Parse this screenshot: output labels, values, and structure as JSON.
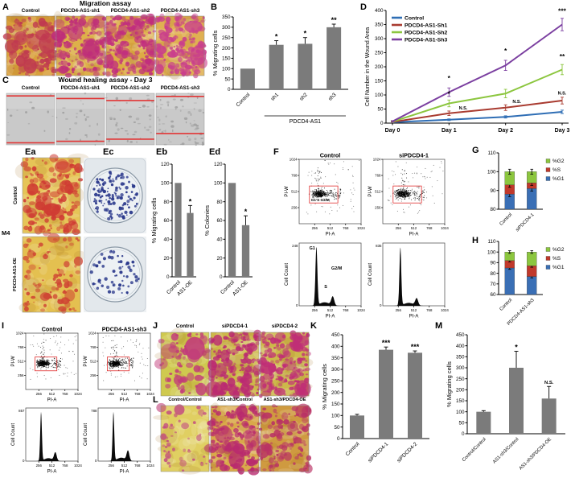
{
  "colors": {
    "bar_gray": "#7b7b7b",
    "wound_line": "#e23535",
    "gate_red": "#e03030",
    "colony_dot": "#2c3a8c",
    "series_blue": "#2f6eb5",
    "series_red": "#a93b30",
    "series_green": "#8cc63f",
    "series_purple": "#7b3fa0",
    "stack_g2_green": "#8cc63f",
    "stack_s_red": "#c0392b",
    "stack_g1_blue": "#3a6fb5"
  },
  "panels": {
    "A": {
      "id": "A",
      "title": "Migration assay",
      "labels": [
        "Control",
        "PDCD4-AS1-sh1",
        "PDCD4-AS1-sh2",
        "PDCD4-AS1-sh3"
      ]
    },
    "B": {
      "id": "B"
    },
    "C": {
      "id": "C",
      "title": "Wound healing assay - Day 3",
      "labels": [
        "Control",
        "PDCD4-AS1-sh1",
        "PDCD4-AS1-sh2",
        "PDCD4-AS1-sh3"
      ]
    },
    "D": {
      "id": "D"
    },
    "E": {
      "ea": "Ea",
      "eb": "Eb",
      "ec": "Ec",
      "ed": "Ed",
      "cell_line": "M4",
      "row_labels": [
        "Control",
        "PDCD4-AS1-OE"
      ]
    },
    "F": {
      "id": "F"
    },
    "G": {
      "id": "G"
    },
    "H": {
      "id": "H"
    },
    "I": {
      "id": "I"
    },
    "J": {
      "id": "J",
      "labels": [
        "Control",
        "siPDCD4-1",
        "siPDCD4-2"
      ]
    },
    "K": {
      "id": "K"
    },
    "L": {
      "id": "L",
      "labels": [
        "Control/Control",
        "AS1-sh3/Control",
        "AS1-sh3/PDCD4-OE"
      ]
    },
    "M": {
      "id": "M"
    }
  },
  "chart_data": [
    {
      "id": "B",
      "type": "bar",
      "ylabel": "% Migrating cells",
      "ylim": [
        0,
        350
      ],
      "ytick_step": 50,
      "categories": [
        "Control",
        "sh1",
        "sh2",
        "sh3"
      ],
      "values": [
        100,
        215,
        220,
        300
      ],
      "errors": [
        0,
        20,
        30,
        15
      ],
      "sig": [
        "",
        "*",
        "*",
        "**"
      ],
      "group": {
        "label": "PDCD4-AS1",
        "from": 1,
        "to": 3
      }
    },
    {
      "id": "D",
      "type": "line",
      "ylabel": "Cell Number in the Wound Area",
      "ylim": [
        0,
        400
      ],
      "ytick_step": 50,
      "x": [
        "Day 0",
        "Day 1",
        "Day 2",
        "Day 3"
      ],
      "series": [
        {
          "name": "Control",
          "color_key": "series_blue",
          "values": [
            3,
            12,
            22,
            40
          ],
          "errors": [
            1,
            3,
            4,
            6
          ]
        },
        {
          "name": "PDCD4-AS1-Sh1",
          "color_key": "series_red",
          "values": [
            4,
            35,
            55,
            80
          ],
          "errors": [
            2,
            8,
            10,
            12
          ]
        },
        {
          "name": "PDCD4-AS1-Sh2",
          "color_key": "series_green",
          "values": [
            5,
            70,
            105,
            190
          ],
          "errors": [
            3,
            12,
            15,
            18
          ]
        },
        {
          "name": "PDCD4-AS1-Sh3",
          "color_key": "series_purple",
          "values": [
            6,
            110,
            205,
            350
          ],
          "errors": [
            3,
            15,
            18,
            22
          ]
        }
      ],
      "annotations": [
        {
          "xi": 1,
          "y": 152,
          "text": "*"
        },
        {
          "xi": 1,
          "y": 96,
          "text": "*"
        },
        {
          "xi": 1.25,
          "y": 48,
          "text": "N.S."
        },
        {
          "xi": 2,
          "y": 248,
          "text": "*"
        },
        {
          "xi": 2.2,
          "y": 72,
          "text": "N.S."
        },
        {
          "xi": 3,
          "y": 390,
          "text": "***"
        },
        {
          "xi": 3,
          "y": 228,
          "text": "**"
        },
        {
          "xi": 3,
          "y": 102,
          "text": "N.S."
        }
      ]
    },
    {
      "id": "Eb",
      "type": "bar",
      "ylabel": "% Migrating cells",
      "ylim": [
        0,
        120
      ],
      "ytick_step": 20,
      "categories": [
        "Control",
        "AS1-OE"
      ],
      "values": [
        100,
        68
      ],
      "errors": [
        0,
        8
      ],
      "sig": [
        "",
        "*"
      ]
    },
    {
      "id": "Ed",
      "type": "bar",
      "ylabel": "% Colonies",
      "ylim": [
        0,
        120
      ],
      "ytick_step": 20,
      "categories": [
        "Control",
        "AS1-OE"
      ],
      "values": [
        100,
        55
      ],
      "errors": [
        0,
        10
      ],
      "sig": [
        "",
        "*"
      ]
    },
    {
      "id": "G",
      "type": "stacked",
      "ylim": [
        80,
        110
      ],
      "ytick_step": 10,
      "categories": [
        "Control",
        "siPDCD4-1"
      ],
      "seg_err": 1.3,
      "series": [
        {
          "name": "%G2",
          "color_key": "stack_g2_green",
          "values": [
            7,
            6
          ]
        },
        {
          "name": "%S",
          "color_key": "stack_s_red",
          "values": [
            5,
            3
          ]
        },
        {
          "name": "%G1",
          "color_key": "stack_g1_blue",
          "values": [
            88,
            91
          ]
        }
      ]
    },
    {
      "id": "H",
      "type": "stacked",
      "ylim": [
        60,
        110
      ],
      "ytick_step": 10,
      "categories": [
        "Control",
        "PDCD4-AS1-sh3"
      ],
      "seg_err": 1.3,
      "series": [
        {
          "name": "%G2",
          "color_key": "stack_g2_green",
          "values": [
            8,
            13
          ]
        },
        {
          "name": "%S",
          "color_key": "stack_s_red",
          "values": [
            7,
            10
          ]
        },
        {
          "name": "%G1",
          "color_key": "stack_g1_blue",
          "values": [
            85,
            77
          ]
        }
      ]
    },
    {
      "id": "K",
      "type": "bar",
      "ylabel": "% Migrating cells",
      "ylim": [
        0,
        450
      ],
      "ytick_step": 50,
      "categories": [
        "Control",
        "siPDCD4-1",
        "siPDCD4-2"
      ],
      "values": [
        100,
        385,
        372
      ],
      "errors": [
        5,
        12,
        8
      ],
      "sig": [
        "",
        "***",
        "***"
      ]
    },
    {
      "id": "M",
      "type": "bar",
      "ylabel": "% Migrating cells",
      "ylim": [
        0,
        450
      ],
      "ytick_step": 50,
      "categories": [
        "Control/Control",
        "AS1-sh3/Control",
        "AS1-sh3/PDCD4-OE"
      ],
      "values": [
        100,
        300,
        160
      ],
      "errors": [
        5,
        75,
        55
      ],
      "sig": [
        "",
        "*",
        "N.S."
      ]
    },
    {
      "id": "F1s",
      "type": "scatter",
      "title": "Control",
      "xlabel": "PI-A",
      "ylabel": "PI-W",
      "lim": 1024,
      "xticks": [
        256,
        512,
        768,
        1024
      ],
      "yticks": [
        256,
        512,
        768,
        1024
      ],
      "gate": [
        170,
        330,
        640,
        600
      ],
      "gate_label": "G1 S G2/M",
      "seed": 11
    },
    {
      "id": "F2s",
      "type": "scatter",
      "title": "siPDCD4-1",
      "xlabel": "PI-A",
      "ylabel": "PI-W",
      "lim": 1024,
      "xticks": [
        256,
        512,
        768,
        1024
      ],
      "yticks": [
        256,
        512,
        768,
        1024
      ],
      "gate": [
        170,
        330,
        640,
        600
      ],
      "gate_label": "",
      "seed": 22
    },
    {
      "id": "I1s",
      "type": "scatter",
      "title": "Control",
      "xlabel": "PI-A",
      "ylabel": "PI-W",
      "lim": 1024,
      "xticks": [
        256,
        512,
        768,
        1024
      ],
      "yticks": [
        256,
        512,
        768,
        1024
      ],
      "gate": [
        180,
        340,
        610,
        590
      ],
      "gate_label": "",
      "seed": 33
    },
    {
      "id": "I2s",
      "type": "scatter",
      "title": "PDCD4-AS1-sh3",
      "xlabel": "PI-A",
      "ylabel": "PI-W",
      "lim": 1024,
      "xticks": [
        256,
        512,
        768,
        1024
      ],
      "yticks": [
        256,
        512,
        768,
        1024
      ],
      "gate": [
        180,
        340,
        610,
        590
      ],
      "gate_label": "",
      "seed": 44
    },
    {
      "id": "F1h",
      "type": "histogram",
      "ylabel": "Cell Count",
      "xlabel": "PI-A",
      "lim": 1024,
      "xticks": [
        256,
        512,
        768,
        1024
      ],
      "ytop": "248",
      "peaks": [
        {
          "m": 285,
          "s": 16,
          "a": 1
        },
        {
          "m": 420,
          "s": 80,
          "a": 0.06
        },
        {
          "m": 555,
          "s": 24,
          "a": 0.15
        }
      ],
      "labels": [
        {
          "text": "G1",
          "x": 215,
          "fy": 0.1
        },
        {
          "text": "G2/M",
          "x": 620,
          "fy": 0.42
        },
        {
          "text": "S",
          "x": 440,
          "fy": 0.72
        }
      ]
    },
    {
      "id": "F2h",
      "type": "histogram",
      "ylabel": "Cell Count",
      "xlabel": "PI-A",
      "lim": 1024,
      "xticks": [
        256,
        512,
        768,
        1024
      ],
      "ytop": "835",
      "peaks": [
        {
          "m": 290,
          "s": 15,
          "a": 1
        },
        {
          "m": 430,
          "s": 80,
          "a": 0.05
        },
        {
          "m": 560,
          "s": 24,
          "a": 0.12
        }
      ],
      "labels": []
    },
    {
      "id": "I1h",
      "type": "histogram",
      "ylabel": "Cell Count",
      "xlabel": "PI-A",
      "lim": 1024,
      "xticks": [
        256,
        512,
        768,
        1024
      ],
      "ytop": "857",
      "peaks": [
        {
          "m": 300,
          "s": 16,
          "a": 1
        },
        {
          "m": 445,
          "s": 80,
          "a": 0.06
        },
        {
          "m": 580,
          "s": 26,
          "a": 0.17
        }
      ],
      "labels": []
    },
    {
      "id": "I2h",
      "type": "histogram",
      "ylabel": "Cell Count",
      "xlabel": "PI-A",
      "lim": 1024,
      "xticks": [
        256,
        512,
        768,
        1024
      ],
      "ytop": "788",
      "peaks": [
        {
          "m": 300,
          "s": 16,
          "a": 1
        },
        {
          "m": 455,
          "s": 85,
          "a": 0.07
        },
        {
          "m": 585,
          "s": 26,
          "a": 0.2
        }
      ],
      "labels": []
    }
  ]
}
